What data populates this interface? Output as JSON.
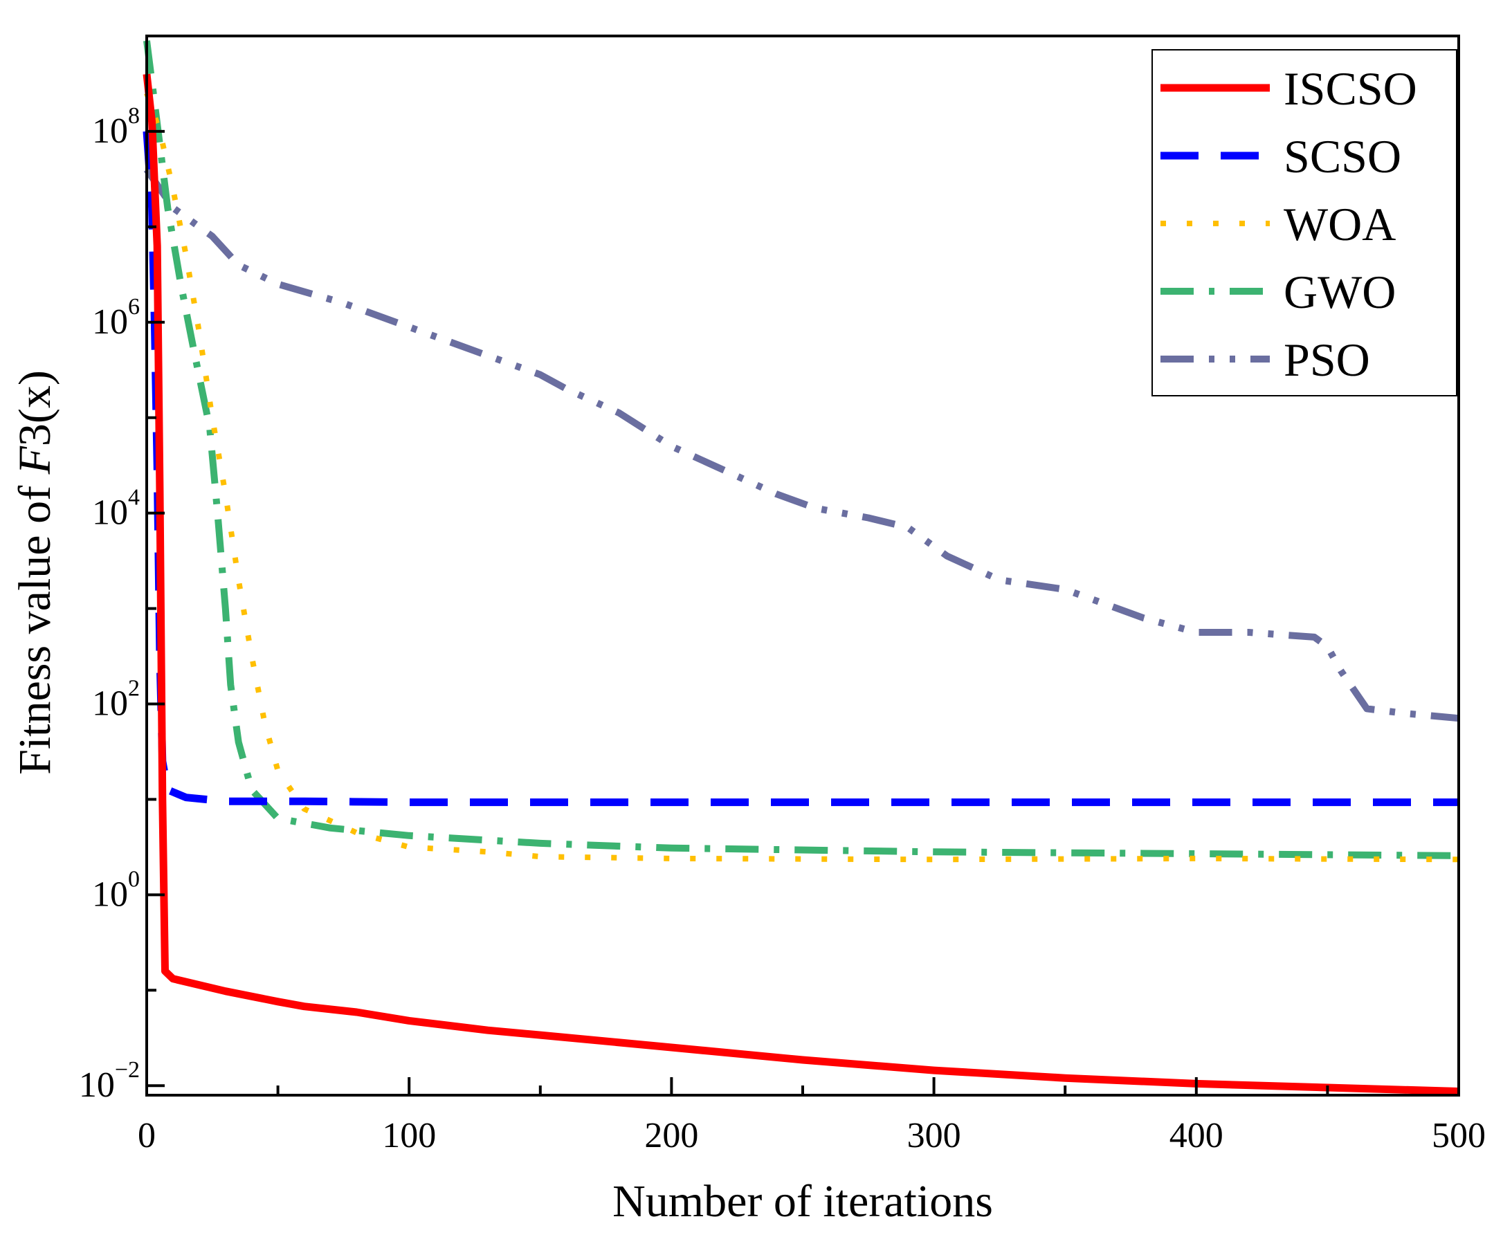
{
  "chart_data": {
    "type": "line",
    "title": "",
    "xlabel": "Number of iterations",
    "ylabel_prefix": "Fitness value of ",
    "ylabel_func": "F",
    "ylabel_suffix": "3(x)",
    "xlim": [
      0,
      500
    ],
    "ylim_log10": [
      -2.1,
      9.0
    ],
    "yscale": "log",
    "grid": false,
    "legend_position": "top-right",
    "x_ticks": [
      {
        "value": 0,
        "label": "0"
      },
      {
        "value": 100,
        "label": "100"
      },
      {
        "value": 200,
        "label": "200"
      },
      {
        "value": 300,
        "label": "300"
      },
      {
        "value": 400,
        "label": "400"
      },
      {
        "value": 500,
        "label": "500"
      }
    ],
    "y_ticks": [
      {
        "exp": -2,
        "base": "10",
        "sup": "−2"
      },
      {
        "exp": 0,
        "base": "10",
        "sup": "0"
      },
      {
        "exp": 2,
        "base": "10",
        "sup": "2"
      },
      {
        "exp": 4,
        "base": "10",
        "sup": "4"
      },
      {
        "exp": 6,
        "base": "10",
        "sup": "6"
      },
      {
        "exp": 8,
        "base": "10",
        "sup": "8"
      }
    ],
    "series": [
      {
        "name": "ISCSO",
        "color": "#ff0000",
        "style": "solid",
        "points": [
          [
            0,
            8.6
          ],
          [
            2,
            8.1
          ],
          [
            4,
            6.8
          ],
          [
            5,
            4.2
          ],
          [
            6,
            1.0
          ],
          [
            7,
            -0.8
          ],
          [
            10,
            -0.88
          ],
          [
            30,
            -1.01
          ],
          [
            50,
            -1.12
          ],
          [
            60,
            -1.17
          ],
          [
            80,
            -1.23
          ],
          [
            100,
            -1.32
          ],
          [
            130,
            -1.42
          ],
          [
            150,
            -1.47
          ],
          [
            200,
            -1.6
          ],
          [
            250,
            -1.73
          ],
          [
            300,
            -1.84
          ],
          [
            350,
            -1.92
          ],
          [
            400,
            -1.98
          ],
          [
            450,
            -2.02
          ],
          [
            500,
            -2.06
          ]
        ]
      },
      {
        "name": "SCSO",
        "color": "#0000ff",
        "style": "dashed",
        "points": [
          [
            0,
            8.0
          ],
          [
            2,
            7.2
          ],
          [
            3,
            6.0
          ],
          [
            4,
            4.5
          ],
          [
            5,
            2.5
          ],
          [
            6,
            1.4
          ],
          [
            8,
            1.1
          ],
          [
            15,
            1.02
          ],
          [
            30,
            0.98
          ],
          [
            60,
            0.98
          ],
          [
            100,
            0.97
          ],
          [
            200,
            0.97
          ],
          [
            300,
            0.97
          ],
          [
            400,
            0.97
          ],
          [
            500,
            0.97
          ]
        ]
      },
      {
        "name": "WOA",
        "color": "#ffbf00",
        "style": "dotted",
        "points": [
          [
            0,
            8.4
          ],
          [
            5,
            8.0
          ],
          [
            10,
            7.4
          ],
          [
            15,
            6.7
          ],
          [
            20,
            5.9
          ],
          [
            25,
            5.0
          ],
          [
            30,
            4.2
          ],
          [
            35,
            3.3
          ],
          [
            40,
            2.5
          ],
          [
            45,
            1.8
          ],
          [
            50,
            1.3
          ],
          [
            60,
            0.9
          ],
          [
            80,
            0.65
          ],
          [
            100,
            0.5
          ],
          [
            130,
            0.45
          ],
          [
            150,
            0.4
          ],
          [
            200,
            0.38
          ],
          [
            300,
            0.37
          ],
          [
            400,
            0.38
          ],
          [
            500,
            0.37
          ]
        ]
      },
      {
        "name": "GWO",
        "color": "#3cb371",
        "style": "dash-dot",
        "points": [
          [
            0,
            8.95
          ],
          [
            3,
            8.3
          ],
          [
            8,
            7.2
          ],
          [
            13,
            6.4
          ],
          [
            18,
            5.7
          ],
          [
            24,
            4.9
          ],
          [
            27,
            4.0
          ],
          [
            30,
            3.0
          ],
          [
            32,
            2.2
          ],
          [
            35,
            1.6
          ],
          [
            40,
            1.1
          ],
          [
            50,
            0.8
          ],
          [
            70,
            0.7
          ],
          [
            100,
            0.62
          ],
          [
            150,
            0.54
          ],
          [
            200,
            0.49
          ],
          [
            300,
            0.45
          ],
          [
            400,
            0.43
          ],
          [
            500,
            0.41
          ]
        ]
      },
      {
        "name": "PSO",
        "color": "#6a6ea0",
        "style": "dash-dot-dot",
        "points": [
          [
            0,
            7.6
          ],
          [
            5,
            7.4
          ],
          [
            10,
            7.2
          ],
          [
            15,
            7.1
          ],
          [
            25,
            6.9
          ],
          [
            35,
            6.6
          ],
          [
            50,
            6.4
          ],
          [
            75,
            6.2
          ],
          [
            100,
            5.95
          ],
          [
            125,
            5.7
          ],
          [
            150,
            5.45
          ],
          [
            160,
            5.3
          ],
          [
            180,
            5.05
          ],
          [
            200,
            4.7
          ],
          [
            220,
            4.45
          ],
          [
            240,
            4.2
          ],
          [
            255,
            4.05
          ],
          [
            275,
            3.95
          ],
          [
            290,
            3.85
          ],
          [
            305,
            3.55
          ],
          [
            325,
            3.3
          ],
          [
            350,
            3.2
          ],
          [
            360,
            3.1
          ],
          [
            380,
            2.9
          ],
          [
            400,
            2.75
          ],
          [
            420,
            2.75
          ],
          [
            445,
            2.7
          ],
          [
            450,
            2.6
          ],
          [
            455,
            2.35
          ],
          [
            465,
            1.95
          ],
          [
            480,
            1.9
          ],
          [
            500,
            1.85
          ]
        ]
      }
    ]
  }
}
